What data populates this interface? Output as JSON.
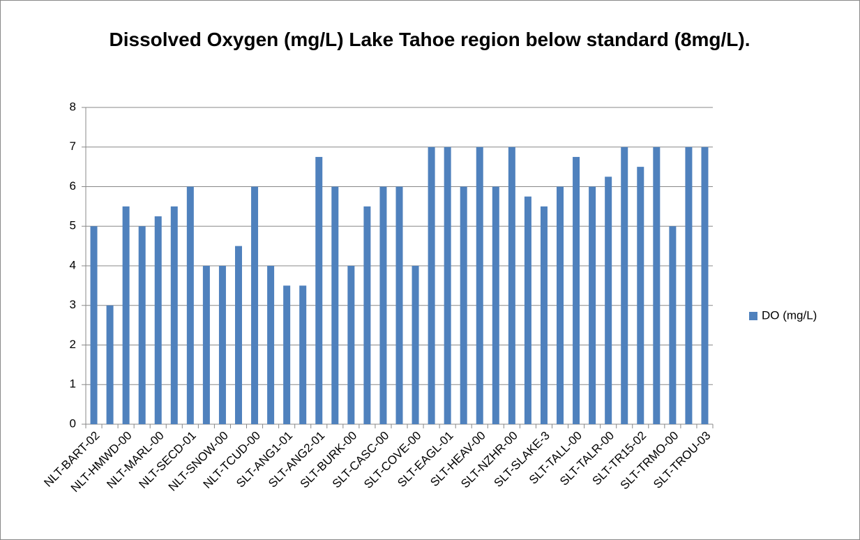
{
  "chart_data": {
    "type": "bar",
    "title": "Dissolved Oxygen (mg/L) Lake Tahoe region below standard (8mg/L).",
    "categories": [
      "NLT-BART-02",
      null,
      "NLT-HMWD-00",
      null,
      "NLT-MARL-00",
      null,
      "NLT-SECD-01",
      null,
      "NLT-SNOW-00",
      null,
      "NLT-TCUD-00",
      null,
      "SLT-ANG1-01",
      null,
      "SLT-ANG2-01",
      null,
      "SLT-BURK-00",
      null,
      "SLT-CASC-00",
      null,
      "SLT-COVE-00",
      null,
      "SLT-EAGL-01",
      null,
      "SLT-HEAV-00",
      null,
      "SLT-NZHR-00",
      null,
      "SLT-SLAKE-3",
      null,
      "SLT-TALL-00",
      null,
      "SLT-TALR-00",
      null,
      "SLT-TR15-02",
      null,
      "SLT-TRMO-00",
      null,
      "SLT-TROU-03"
    ],
    "series": [
      {
        "name": "DO (mg/L)",
        "color": "#4f81bd",
        "values": [
          5,
          3,
          5.5,
          5,
          5.25,
          5.5,
          6,
          4,
          4,
          4.5,
          6,
          4,
          3.5,
          3.5,
          6.75,
          6,
          4,
          5.5,
          6,
          6,
          4,
          7,
          7,
          6,
          7,
          6,
          7,
          5.75,
          5.5,
          6,
          6.75,
          6,
          6.25,
          7,
          6.5,
          7,
          5,
          7,
          7
        ]
      }
    ],
    "ylim": [
      0,
      8
    ],
    "yticks": [
      0,
      1,
      2,
      3,
      4,
      5,
      6,
      7,
      8
    ],
    "grid": true,
    "legend": "right"
  }
}
